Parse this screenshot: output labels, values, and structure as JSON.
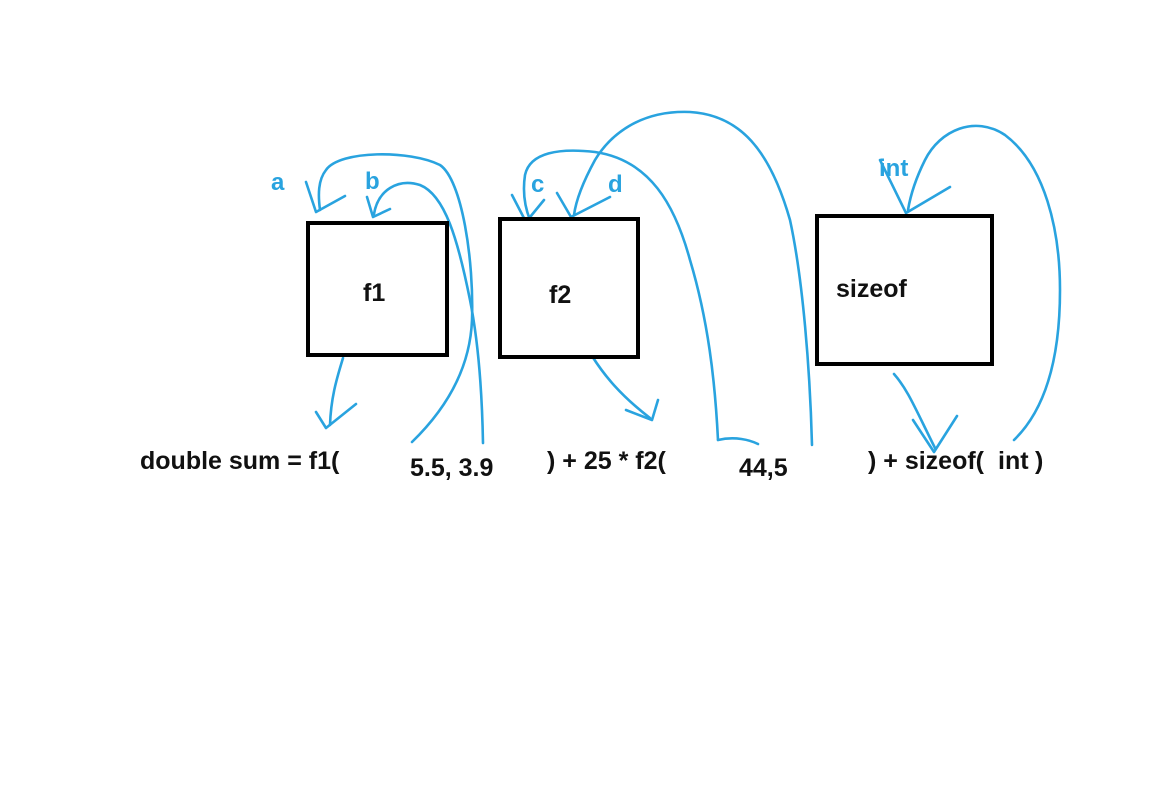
{
  "colors": {
    "arrow": "#29A3DF",
    "box_border": "#000000",
    "text": "#111111",
    "background": "#ffffff"
  },
  "boxes": [
    {
      "label": "f1"
    },
    {
      "label": "f2"
    },
    {
      "label": "sizeof"
    }
  ],
  "params": {
    "a": "a",
    "b": "b",
    "c": "c",
    "d": "d",
    "int": "int"
  },
  "statement": {
    "prefix": "double sum = f1(",
    "args1": "5.5, 3.9",
    "mid": ") + 25 * f2(",
    "args2": "44,5",
    "suffix_a": ") + sizeof(",
    "int_kw": "int",
    "suffix_b": ")"
  }
}
